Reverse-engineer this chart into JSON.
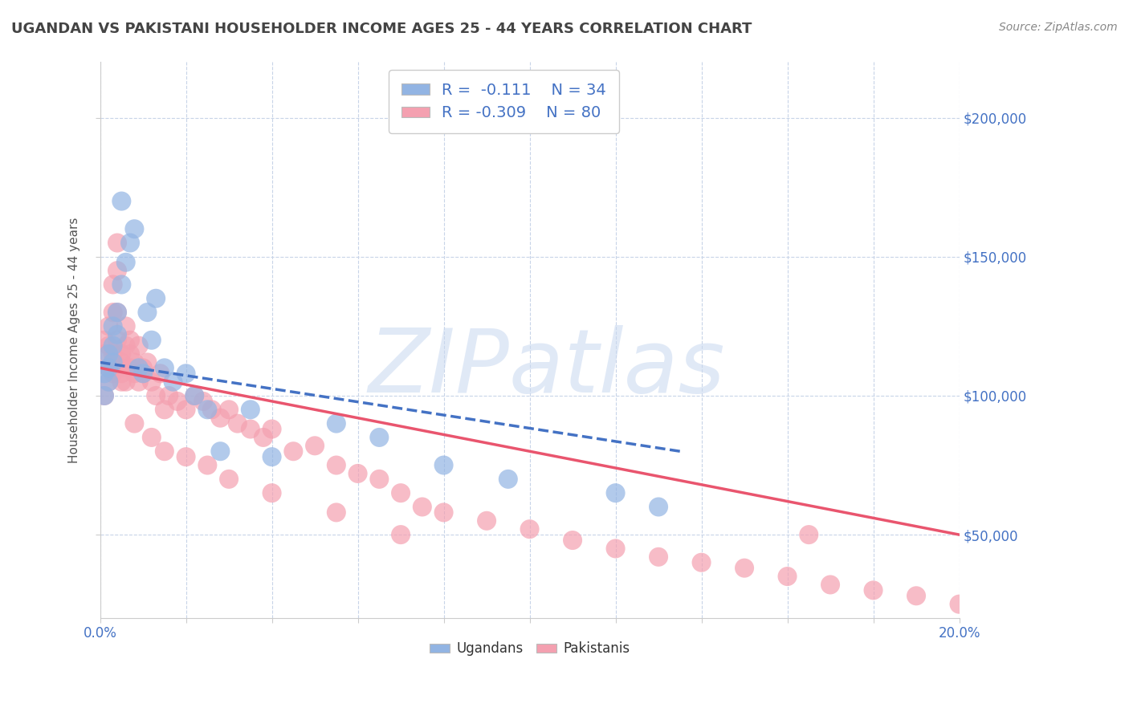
{
  "title": "UGANDAN VS PAKISTANI HOUSEHOLDER INCOME AGES 25 - 44 YEARS CORRELATION CHART",
  "source": "Source: ZipAtlas.com",
  "ylabel": "Householder Income Ages 25 - 44 years",
  "xlim": [
    0.0,
    0.2
  ],
  "ylim": [
    20000,
    220000
  ],
  "xticks": [
    0.0,
    0.02,
    0.04,
    0.06,
    0.08,
    0.1,
    0.12,
    0.14,
    0.16,
    0.18,
    0.2
  ],
  "yticks": [
    50000,
    100000,
    150000,
    200000
  ],
  "ytick_labels_right": [
    "$50,000",
    "$100,000",
    "$150,000",
    "$200,000"
  ],
  "ugandan_color": "#92b4e3",
  "pakistani_color": "#f4a0b0",
  "ugandan_line_color": "#4472c4",
  "pakistani_line_color": "#e9556e",
  "background_color": "#ffffff",
  "grid_color": "#c8d4e8",
  "legend_text_color": "#4472c4",
  "watermark": "ZIPatlas",
  "ugandan_x": [
    0.001,
    0.001,
    0.002,
    0.002,
    0.002,
    0.003,
    0.003,
    0.003,
    0.004,
    0.004,
    0.005,
    0.005,
    0.006,
    0.007,
    0.008,
    0.009,
    0.01,
    0.011,
    0.012,
    0.013,
    0.015,
    0.017,
    0.02,
    0.022,
    0.025,
    0.028,
    0.035,
    0.04,
    0.055,
    0.065,
    0.08,
    0.095,
    0.12,
    0.13
  ],
  "ugandan_y": [
    100000,
    108000,
    105000,
    110000,
    115000,
    112000,
    118000,
    125000,
    130000,
    122000,
    140000,
    170000,
    148000,
    155000,
    160000,
    110000,
    108000,
    130000,
    120000,
    135000,
    110000,
    105000,
    108000,
    100000,
    95000,
    80000,
    95000,
    78000,
    90000,
    85000,
    75000,
    70000,
    65000,
    60000
  ],
  "pakistani_x": [
    0.001,
    0.001,
    0.001,
    0.002,
    0.002,
    0.002,
    0.002,
    0.003,
    0.003,
    0.003,
    0.003,
    0.003,
    0.004,
    0.004,
    0.004,
    0.004,
    0.005,
    0.005,
    0.005,
    0.005,
    0.006,
    0.006,
    0.006,
    0.007,
    0.007,
    0.007,
    0.008,
    0.008,
    0.009,
    0.009,
    0.01,
    0.01,
    0.011,
    0.012,
    0.013,
    0.014,
    0.015,
    0.016,
    0.018,
    0.02,
    0.022,
    0.024,
    0.026,
    0.028,
    0.03,
    0.032,
    0.035,
    0.038,
    0.04,
    0.045,
    0.05,
    0.055,
    0.06,
    0.065,
    0.07,
    0.075,
    0.08,
    0.09,
    0.1,
    0.11,
    0.12,
    0.13,
    0.14,
    0.15,
    0.16,
    0.17,
    0.18,
    0.19,
    0.2,
    0.005,
    0.008,
    0.012,
    0.015,
    0.02,
    0.025,
    0.03,
    0.04,
    0.055,
    0.07,
    0.165
  ],
  "pakistani_y": [
    115000,
    120000,
    100000,
    110000,
    105000,
    118000,
    125000,
    112000,
    108000,
    115000,
    130000,
    140000,
    120000,
    130000,
    145000,
    155000,
    110000,
    115000,
    108000,
    112000,
    105000,
    118000,
    125000,
    110000,
    115000,
    120000,
    108000,
    112000,
    105000,
    118000,
    110000,
    108000,
    112000,
    105000,
    100000,
    108000,
    95000,
    100000,
    98000,
    95000,
    100000,
    98000,
    95000,
    92000,
    95000,
    90000,
    88000,
    85000,
    88000,
    80000,
    82000,
    75000,
    72000,
    70000,
    65000,
    60000,
    58000,
    55000,
    52000,
    48000,
    45000,
    42000,
    40000,
    38000,
    35000,
    32000,
    30000,
    28000,
    25000,
    105000,
    90000,
    85000,
    80000,
    78000,
    75000,
    70000,
    65000,
    58000,
    50000,
    50000
  ],
  "ugandan_trend_x0": 0.0,
  "ugandan_trend_x1": 0.135,
  "ugandan_trend_y0": 112000,
  "ugandan_trend_y1": 80000,
  "pakistani_trend_x0": 0.0,
  "pakistani_trend_x1": 0.2,
  "pakistani_trend_y0": 110000,
  "pakistani_trend_y1": 50000
}
